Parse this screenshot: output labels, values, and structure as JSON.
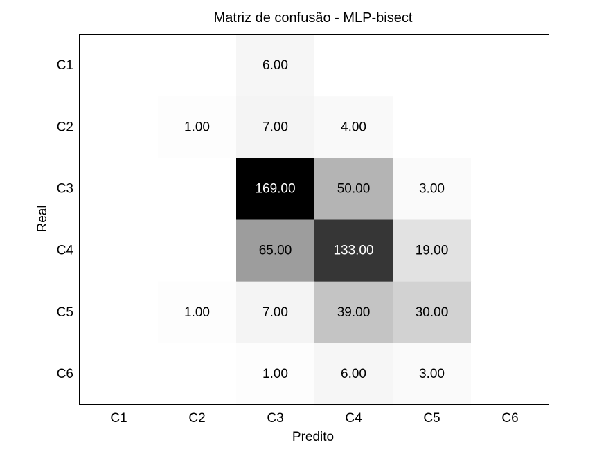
{
  "chart_data": {
    "type": "heatmap",
    "title": "Matriz de confusão - MLP-bisect",
    "xlabel": "Predito",
    "ylabel": "Real",
    "x_categories": [
      "C1",
      "C2",
      "C3",
      "C4",
      "C5",
      "C6"
    ],
    "y_categories": [
      "C1",
      "C2",
      "C3",
      "C4",
      "C5",
      "C6"
    ],
    "values": [
      [
        0,
        0,
        6,
        0,
        0,
        0
      ],
      [
        0,
        1,
        7,
        4,
        0,
        0
      ],
      [
        0,
        0,
        169,
        50,
        3,
        0
      ],
      [
        0,
        0,
        65,
        133,
        19,
        0
      ],
      [
        0,
        1,
        7,
        39,
        30,
        0
      ],
      [
        0,
        0,
        1,
        6,
        3,
        0
      ]
    ],
    "value_format": "2 decimals",
    "hide_zero_labels": true,
    "colormap": "white-to-black",
    "grid": false
  }
}
